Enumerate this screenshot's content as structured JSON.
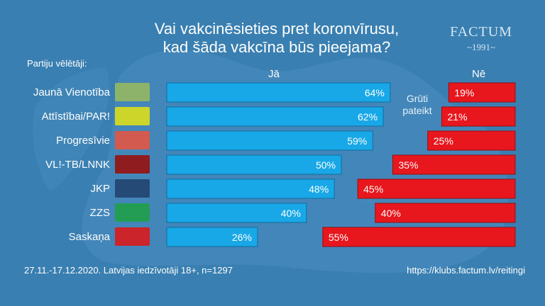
{
  "title_line1": "Vai vakcinēsieties pret koronvīrusu,",
  "title_line2": "kad šāda vakcīna būs pieejama?",
  "logo": {
    "name": "FACTUM",
    "year": "~1991~"
  },
  "subhead": "Partiju vēlētāji:",
  "col_yes": "Jā",
  "col_no": "Nē",
  "col_unsure": "Grūti\npateikt",
  "footer_left": "27.11.-17.12.2020. Latvijas iedzīvotāji 18+, n=1297",
  "footer_right": "https://klubs.factum.lv/reitingi",
  "colors": {
    "background": "#3a7fb1",
    "yes_bar": "#18a8e8",
    "no_bar": "#e8171e"
  },
  "chart_data": {
    "type": "bar",
    "categories": [
      "Jaunā Vienotība",
      "Attīstībai/PAR!",
      "Progresīvie",
      "VL!-TB/LNNK",
      "JKP",
      "ZZS",
      "Saskaņa"
    ],
    "party_colors": [
      "#8db26a",
      "#cdd52a",
      "#d35a4e",
      "#8f1c1f",
      "#254a75",
      "#249d54",
      "#cc242b"
    ],
    "series": [
      {
        "name": "Jā",
        "values": [
          64,
          62,
          59,
          50,
          48,
          40,
          26
        ]
      },
      {
        "name": "Nē",
        "values": [
          19,
          21,
          25,
          35,
          45,
          40,
          55
        ]
      }
    ],
    "unit": "%"
  }
}
